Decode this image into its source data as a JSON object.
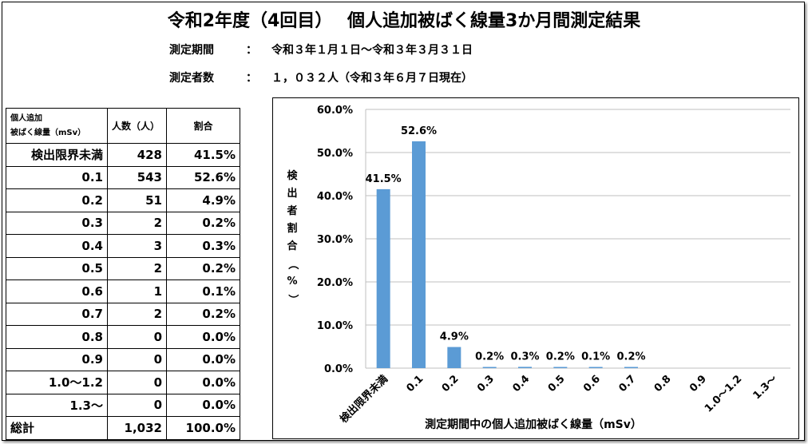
{
  "header": {
    "title": "令和2年度（4回目）　 個人追加被ばく線量3か月間測定結果",
    "period_label": "測定期間",
    "period_value": "令和３年１月１日～令和３年３月３１日",
    "count_label": "測定者数",
    "count_value": "１，０３２人（令和３年６月７日現在）",
    "colon": "："
  },
  "table": {
    "headers": [
      "個人追加\n被ばく線量（mSv）",
      "人数（人）",
      "割合"
    ],
    "header_line1": "個人追加",
    "header_line2": "被ばく線量（mSv）",
    "rows": [
      {
        "dose": "検出限界未満",
        "count": "428",
        "ratio": "41.5%"
      },
      {
        "dose": "0.1",
        "count": "543",
        "ratio": "52.6%"
      },
      {
        "dose": "0.2",
        "count": "51",
        "ratio": "4.9%"
      },
      {
        "dose": "0.3",
        "count": "2",
        "ratio": "0.2%"
      },
      {
        "dose": "0.4",
        "count": "3",
        "ratio": "0.3%"
      },
      {
        "dose": "0.5",
        "count": "2",
        "ratio": "0.2%"
      },
      {
        "dose": "0.6",
        "count": "1",
        "ratio": "0.1%"
      },
      {
        "dose": "0.7",
        "count": "2",
        "ratio": "0.2%"
      },
      {
        "dose": "0.8",
        "count": "0",
        "ratio": "0.0%"
      },
      {
        "dose": "0.9",
        "count": "0",
        "ratio": "0.0%"
      },
      {
        "dose": "1.0～1.2",
        "count": "0",
        "ratio": "0.0%"
      },
      {
        "dose": "1.3～",
        "count": "0",
        "ratio": "0.0%"
      }
    ],
    "total": {
      "dose": "総計",
      "count": "1,032",
      "ratio": "100.0%"
    }
  },
  "chart_data": {
    "type": "bar",
    "categories": [
      "検出限界未満",
      "0.1",
      "0.2",
      "0.3",
      "0.4",
      "0.5",
      "0.6",
      "0.7",
      "0.8",
      "0.9",
      "1.0～1.2",
      "1.3～"
    ],
    "values": [
      41.5,
      52.6,
      4.9,
      0.2,
      0.3,
      0.2,
      0.1,
      0.2,
      0,
      0,
      0,
      0
    ],
    "data_labels": [
      "41.5%",
      "52.6%",
      "4.9%",
      "0.2%",
      "0.3%",
      "0.2%",
      "0.1%",
      "0.2%",
      "",
      "",
      "",
      ""
    ],
    "xlabel": "測定期間中の個人追加被ばく線量（mSv）",
    "ylabel": "検出者割合（%）",
    "ylabel_chars": [
      "検",
      "出",
      "者",
      "割",
      "合",
      "（",
      "%",
      "）"
    ],
    "ylim": [
      0,
      60
    ],
    "yticks": [
      0,
      10,
      20,
      30,
      40,
      50,
      60
    ],
    "ytick_labels": [
      "0.0%",
      "10.0%",
      "20.0%",
      "30.0%",
      "40.0%",
      "50.0%",
      "60.0%"
    ],
    "grid": true,
    "bar_color": "#5B9BD5"
  }
}
